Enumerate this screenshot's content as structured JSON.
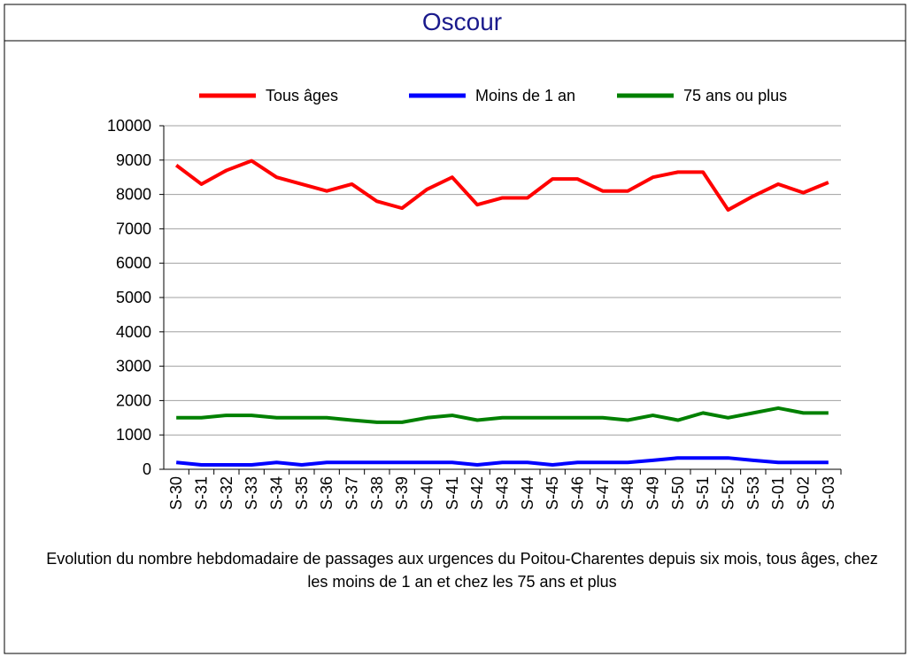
{
  "chart_data": {
    "type": "line",
    "title": "Oscour",
    "caption": "Evolution du nombre hebdomadaire de passages aux urgences du Poitou-Charentes depuis six mois, tous âges, chez les moins de 1 an et chez les 75 ans  et plus",
    "categories": [
      "S-30",
      "S-31",
      "S-32",
      "S-33",
      "S-34",
      "S-35",
      "S-36",
      "S-37",
      "S-38",
      "S-39",
      "S-40",
      "S-41",
      "S-42",
      "S-43",
      "S-44",
      "S-45",
      "S-46",
      "S-47",
      "S-48",
      "S-49",
      "S-50",
      "S-51",
      "S-52",
      "S-53",
      "S-01",
      "S-02",
      "S-03"
    ],
    "series": [
      {
        "name": "Tous âges",
        "color": "#ff0000",
        "values": [
          8850,
          8300,
          8700,
          8980,
          8500,
          8300,
          8100,
          8300,
          7800,
          7600,
          8150,
          8500,
          7700,
          7900,
          7900,
          8450,
          8450,
          8100,
          8100,
          8500,
          8650,
          8650,
          7550,
          7950,
          8300,
          8050,
          8350
        ]
      },
      {
        "name": "Moins de 1 an",
        "color": "#0000ff",
        "values": [
          200,
          130,
          130,
          130,
          200,
          130,
          200,
          200,
          200,
          200,
          200,
          200,
          130,
          200,
          200,
          130,
          200,
          200,
          200,
          260,
          330,
          330,
          330,
          260,
          200,
          200,
          200
        ]
      },
      {
        "name": "75 ans ou plus",
        "color": "#008000",
        "values": [
          1500,
          1500,
          1570,
          1570,
          1500,
          1500,
          1500,
          1430,
          1370,
          1370,
          1500,
          1570,
          1430,
          1500,
          1500,
          1500,
          1500,
          1500,
          1430,
          1570,
          1430,
          1640,
          1500,
          1640,
          1780,
          1640,
          1640
        ]
      }
    ],
    "ylim": [
      0,
      10000
    ],
    "yticks": [
      0,
      1000,
      2000,
      3000,
      4000,
      5000,
      6000,
      7000,
      8000,
      9000,
      10000
    ],
    "grid": true,
    "legend": "top"
  }
}
